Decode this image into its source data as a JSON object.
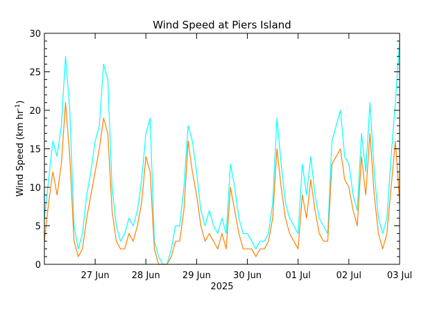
{
  "chart_data": {
    "type": "line",
    "title": "Wind Speed at Piers Island",
    "ylabel": "Wind Speed (km hr",
    "ylabel_superscript": "-1",
    "ylabel_close": ")",
    "xlabel": "2025",
    "ylim": [
      0,
      30
    ],
    "yticks": [
      0,
      5,
      10,
      15,
      20,
      25,
      30
    ],
    "xlim": [
      "2025-06-26T00:00",
      "2025-07-03T00:00"
    ],
    "xticks": [
      {
        "date": "2025-06-27",
        "label": "27 Jun"
      },
      {
        "date": "2025-06-28",
        "label": "28 Jun"
      },
      {
        "date": "2025-06-29",
        "label": "29 Jun"
      },
      {
        "date": "2025-06-30",
        "label": "30 Jun"
      },
      {
        "date": "2025-07-01",
        "label": "01 Jul"
      },
      {
        "date": "2025-07-02",
        "label": "02 Jul"
      },
      {
        "date": "2025-07-03",
        "label": "03 Jul"
      }
    ],
    "grid": false,
    "colors": {
      "gust": "#00ffff",
      "mean": "#ff7f00"
    },
    "x_hours": [
      0,
      2,
      4,
      6,
      8,
      10,
      12,
      14,
      16,
      18,
      20,
      22,
      24,
      26,
      28,
      30,
      32,
      34,
      36,
      38,
      40,
      42,
      44,
      46,
      48,
      50,
      52,
      54,
      56,
      58,
      60,
      62,
      64,
      66,
      68,
      70,
      72,
      74,
      76,
      78,
      80,
      82,
      84,
      86,
      88,
      90,
      92,
      94,
      96,
      98,
      100,
      102,
      104,
      106,
      108,
      110,
      112,
      114,
      116,
      118,
      120,
      122,
      124,
      126,
      128,
      130,
      132,
      134,
      136,
      138,
      140,
      142,
      144,
      146,
      148,
      150,
      152,
      154,
      156,
      158,
      160,
      162,
      164,
      166,
      168
    ],
    "series": [
      {
        "color": "#00ffff",
        "values": [
          6,
          11,
          16,
          14,
          18,
          27,
          20,
          5,
          2,
          4,
          9,
          12,
          16,
          18,
          26,
          24,
          10,
          5,
          3,
          4,
          6,
          5,
          7,
          11,
          17,
          19,
          3,
          1,
          0,
          0,
          2,
          5,
          5,
          10,
          18,
          16,
          12,
          7,
          5,
          7,
          5,
          4,
          6,
          4,
          13,
          10,
          6,
          4,
          4,
          3,
          2,
          3,
          3,
          4,
          8,
          19,
          13,
          8,
          6,
          5,
          4,
          13,
          9,
          14,
          9,
          6,
          5,
          4,
          16,
          18,
          20,
          14,
          13,
          9,
          7,
          17,
          12,
          21,
          12,
          6,
          4,
          6,
          14,
          21,
          29
        ]
      },
      {
        "color": "#ff7f00",
        "values": [
          3,
          8,
          12,
          9,
          13,
          21,
          14,
          3,
          1,
          2,
          6,
          9,
          12,
          15,
          19,
          17,
          7,
          3,
          2,
          2,
          4,
          3,
          5,
          8,
          14,
          12,
          2,
          0,
          0,
          0,
          1,
          3,
          3,
          7,
          16,
          12,
          9,
          5,
          3,
          4,
          3,
          2,
          4,
          2,
          10,
          7,
          4,
          2,
          2,
          2,
          1,
          2,
          2,
          3,
          6,
          15,
          10,
          6,
          4,
          3,
          2,
          9,
          6,
          11,
          7,
          4,
          3,
          3,
          13,
          14,
          15,
          11,
          10,
          7,
          5,
          14,
          9,
          17,
          9,
          4,
          2,
          4,
          10,
          16,
          8
        ]
      }
    ]
  }
}
